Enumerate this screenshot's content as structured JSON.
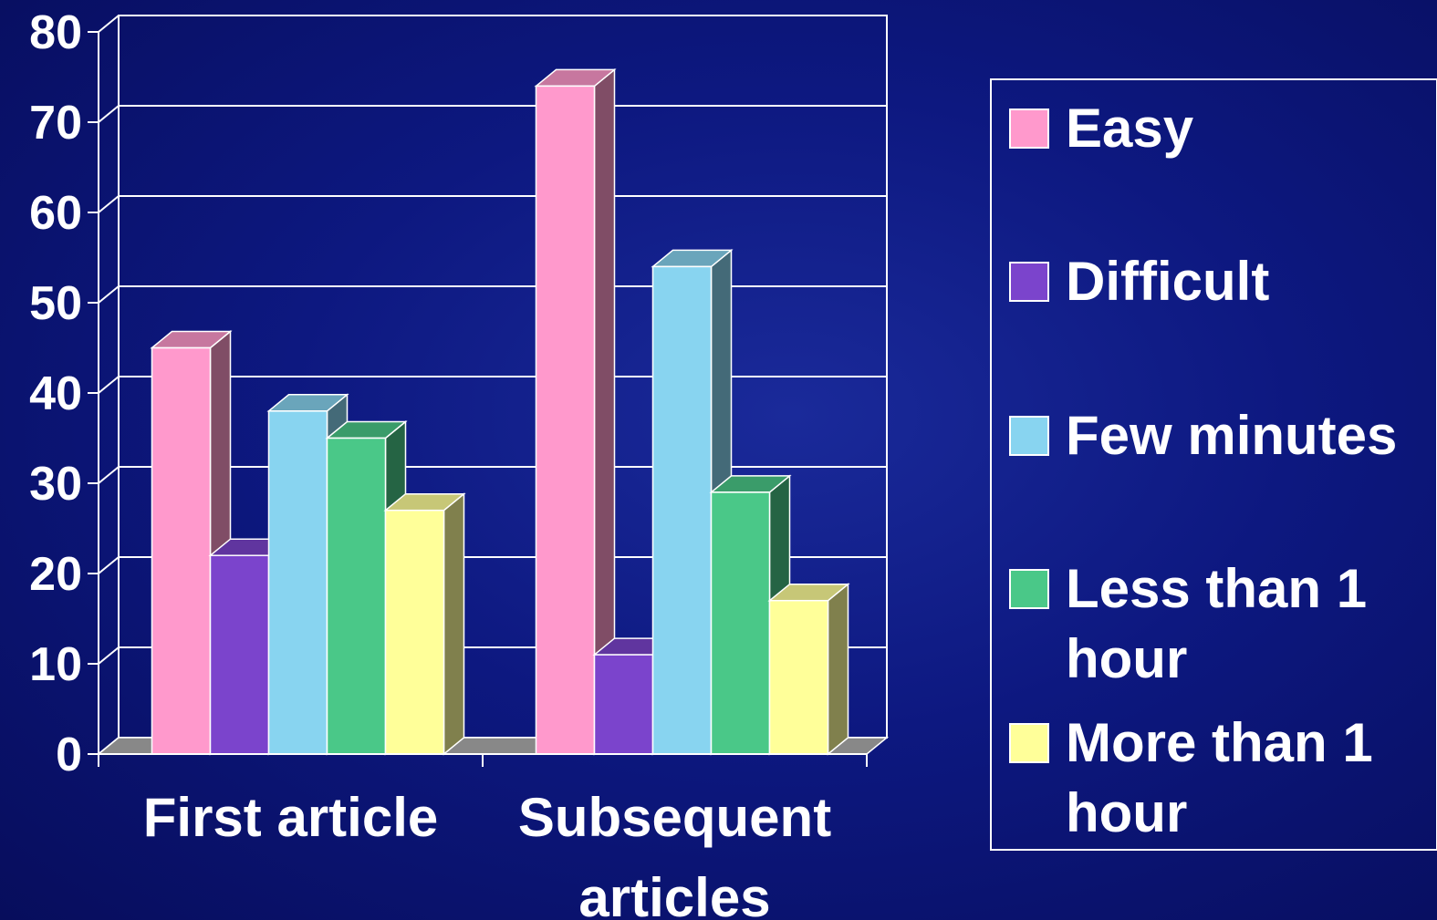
{
  "chart_data": {
    "type": "bar",
    "style": "3d-clustered",
    "categories": [
      "First article",
      "Subsequent articles"
    ],
    "series": [
      {
        "name": "Easy",
        "values": [
          45,
          74
        ],
        "color": "#ff99cc"
      },
      {
        "name": "Difficult",
        "values": [
          22,
          11
        ],
        "color": "#7b44cc"
      },
      {
        "name": "Few minutes",
        "values": [
          38,
          54
        ],
        "color": "#88d4f0"
      },
      {
        "name": "Less than 1 hour",
        "values": [
          35,
          29
        ],
        "color": "#4ac888"
      },
      {
        "name": "More than 1 hour",
        "values": [
          27,
          17
        ],
        "color": "#ffff99"
      }
    ],
    "yticks": [
      0,
      10,
      20,
      30,
      40,
      50,
      60,
      70,
      80
    ],
    "ylim": [
      0,
      80
    ],
    "grid": true,
    "legend_position": "right",
    "xlabel": "",
    "ylabel": "",
    "title": ""
  },
  "colors": {
    "background": "#0d1880",
    "grid": "#ffffff",
    "text": "#ffffff",
    "floor": "#888888"
  }
}
